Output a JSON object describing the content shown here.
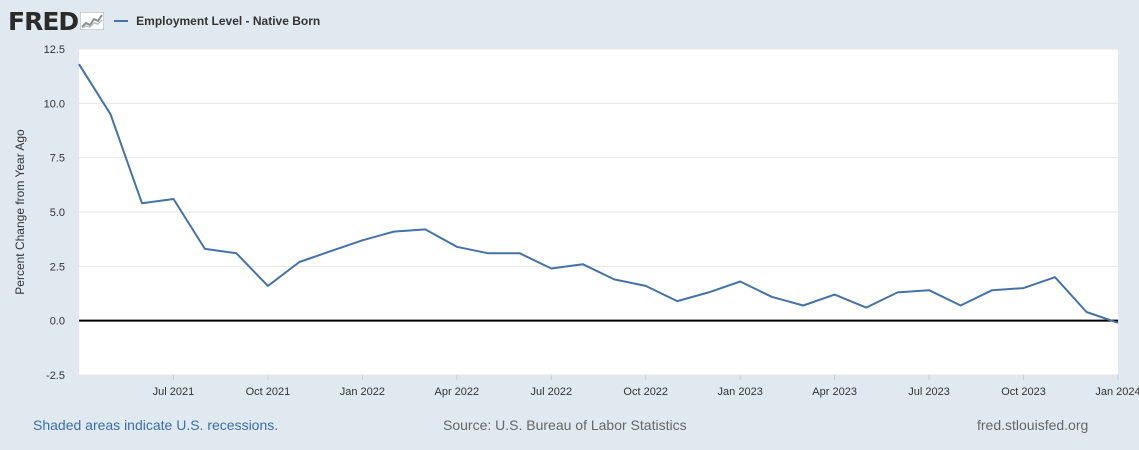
{
  "header": {
    "logo_text": "FRED",
    "logo_icon": "sparkline-chart-icon",
    "series_label": "Employment Level - Native Born",
    "series_color": "#4572a7"
  },
  "footer": {
    "recession_note": "Shaded areas indicate U.S. recessions.",
    "source": "Source: U.S. Bureau of Labor Statistics",
    "site": "fred.stlouisfed.org"
  },
  "chart_data": {
    "type": "line",
    "ylabel": "Percent Change from Year Ago",
    "ylim": [
      -2.5,
      12.5
    ],
    "yticks": [
      "12.5",
      "10.0",
      "7.5",
      "5.0",
      "2.5",
      "0.0",
      "-2.5"
    ],
    "xticks": [
      "Jul 2021",
      "Oct 2021",
      "Jan 2022",
      "Apr 2022",
      "Jul 2022",
      "Oct 2022",
      "Jan 2023",
      "Apr 2023",
      "Jul 2023",
      "Oct 2023",
      "Jan 2024"
    ],
    "grid": true,
    "zero_line": true,
    "series": [
      {
        "name": "Employment Level - Native Born",
        "color": "#4572a7",
        "x": [
          "2021-04",
          "2021-05",
          "2021-06",
          "2021-07",
          "2021-08",
          "2021-09",
          "2021-10",
          "2021-11",
          "2021-12",
          "2022-01",
          "2022-02",
          "2022-03",
          "2022-04",
          "2022-05",
          "2022-06",
          "2022-07",
          "2022-08",
          "2022-09",
          "2022-10",
          "2022-11",
          "2022-12",
          "2023-01",
          "2023-02",
          "2023-03",
          "2023-04",
          "2023-05",
          "2023-06",
          "2023-07",
          "2023-08",
          "2023-09",
          "2023-10",
          "2023-11",
          "2023-12",
          "2024-01"
        ],
        "values": [
          11.8,
          9.5,
          5.4,
          5.6,
          3.3,
          3.1,
          1.6,
          2.7,
          3.2,
          3.7,
          4.1,
          4.2,
          3.4,
          3.1,
          3.1,
          2.4,
          2.6,
          1.9,
          1.6,
          0.9,
          1.3,
          1.8,
          1.1,
          0.7,
          1.2,
          0.6,
          1.3,
          1.4,
          0.7,
          1.4,
          1.5,
          2.0,
          0.4,
          -0.1
        ]
      }
    ]
  }
}
